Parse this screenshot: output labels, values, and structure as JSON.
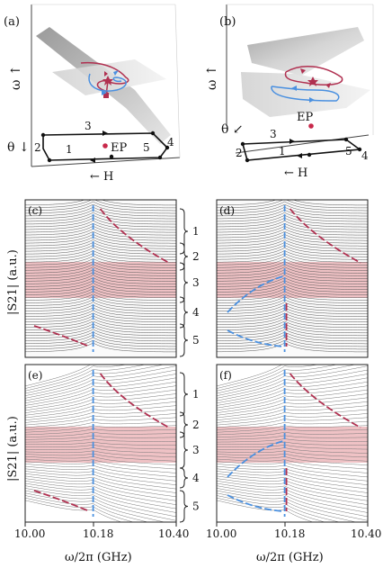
{
  "panels": {
    "a": {
      "tag": "(a)",
      "omega_axis": "ω ↑",
      "theta_axis": "θ ↓",
      "h_axis": "← H",
      "ep_label": "EP",
      "loop_numbers": [
        "1",
        "2",
        "3",
        "4",
        "5"
      ]
    },
    "b": {
      "tag": "(b)",
      "omega_axis": "ω ↑",
      "theta_axis": "θ ↙",
      "h_axis": "← H",
      "ep_label": "EP",
      "loop_numbers": [
        "1",
        "2",
        "3",
        "4",
        "5"
      ]
    },
    "c": {
      "tag": "(c)"
    },
    "d": {
      "tag": "(d)"
    },
    "e": {
      "tag": "(e)"
    },
    "f": {
      "tag": "(f)"
    }
  },
  "segments": [
    "1",
    "2",
    "3",
    "4",
    "5"
  ],
  "y_axis_label": "|S21| (a.u.)",
  "x_axis_label": "ω/2π (GHz)",
  "chart_data": {
    "type": "line",
    "xlabel": "ω/2π (GHz)",
    "ylabel": "|S21| (a.u.)",
    "xlim": [
      10.0,
      10.4
    ],
    "xticks": [
      "10.00",
      "10.18",
      "10.40"
    ],
    "resonance_x": 10.18,
    "highlight_band": "segment 3"
  },
  "colors": {
    "red": "#b03050",
    "blue": "#4a90e0",
    "band": "#e8a8ac",
    "surface": "#bdbdbd",
    "dot": "#c8284a"
  }
}
